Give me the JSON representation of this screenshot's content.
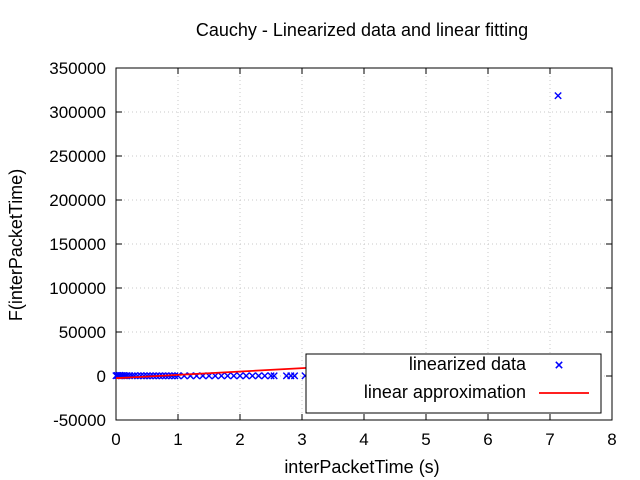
{
  "chart_data": {
    "type": "scatter",
    "title": "Cauchy - Linearized data and linear fitting",
    "xlabel": "interPacketTime (s)",
    "ylabel": "F(interPacketTime)",
    "xlim": [
      0,
      8
    ],
    "ylim": [
      -50000,
      350000
    ],
    "x_ticks": [
      0,
      1,
      2,
      3,
      4,
      5,
      6,
      7,
      8
    ],
    "y_ticks": [
      -50000,
      0,
      50000,
      100000,
      150000,
      200000,
      250000,
      300000,
      350000
    ],
    "x_tick_labels": [
      "0",
      "1",
      "2",
      "3",
      "4",
      "5",
      "6",
      "7",
      "8"
    ],
    "y_tick_labels": [
      "-50000",
      "0",
      "50000",
      "100000",
      "150000",
      "200000",
      "250000",
      "300000",
      "350000"
    ],
    "grid": true,
    "legend_position": "bottom-right",
    "series": [
      {
        "name": "linearized data",
        "kind": "scatter",
        "marker": "x",
        "color": "#0000ff",
        "points": [
          [
            0.0,
            300
          ],
          [
            0.02,
            600
          ],
          [
            0.04,
            200
          ],
          [
            0.06,
            800
          ],
          [
            0.08,
            400
          ],
          [
            0.1,
            300
          ],
          [
            0.12,
            500
          ],
          [
            0.15,
            200
          ],
          [
            0.18,
            400
          ],
          [
            0.22,
            300
          ],
          [
            0.26,
            200
          ],
          [
            0.3,
            300
          ],
          [
            0.35,
            200
          ],
          [
            0.4,
            300
          ],
          [
            0.45,
            200
          ],
          [
            0.5,
            200
          ],
          [
            0.55,
            200
          ],
          [
            0.6,
            200
          ],
          [
            0.65,
            200
          ],
          [
            0.7,
            200
          ],
          [
            0.75,
            200
          ],
          [
            0.8,
            200
          ],
          [
            0.85,
            200
          ],
          [
            0.9,
            200
          ],
          [
            0.95,
            200
          ],
          [
            1.0,
            200
          ],
          [
            1.1,
            200
          ],
          [
            1.2,
            200
          ],
          [
            1.3,
            200
          ],
          [
            1.4,
            200
          ],
          [
            1.5,
            200
          ],
          [
            1.6,
            200
          ],
          [
            1.7,
            200
          ],
          [
            1.8,
            200
          ],
          [
            1.9,
            200
          ],
          [
            2.0,
            200
          ],
          [
            2.1,
            200
          ],
          [
            2.2,
            200
          ],
          [
            2.3,
            200
          ],
          [
            2.4,
            200
          ],
          [
            2.5,
            200
          ],
          [
            2.55,
            200
          ],
          [
            2.75,
            200
          ],
          [
            2.82,
            200
          ],
          [
            2.88,
            200
          ],
          [
            3.05,
            200
          ],
          [
            3.15,
            200
          ],
          [
            3.22,
            200
          ],
          [
            3.28,
            200
          ],
          [
            3.35,
            200
          ],
          [
            3.55,
            200
          ],
          [
            3.65,
            200
          ],
          [
            3.95,
            200
          ],
          [
            4.13,
            200
          ],
          [
            4.22,
            200
          ],
          [
            4.78,
            200
          ],
          [
            4.93,
            200
          ],
          [
            5.0,
            200
          ],
          [
            5.13,
            200
          ],
          [
            7.07,
            200
          ],
          [
            7.2,
            7800
          ],
          [
            7.13,
            318500
          ]
        ]
      },
      {
        "name": "linear approximation",
        "kind": "line",
        "color": "#ff0000",
        "points": [
          [
            0,
            -2500
          ],
          [
            7.13,
            24500
          ]
        ]
      }
    ]
  }
}
